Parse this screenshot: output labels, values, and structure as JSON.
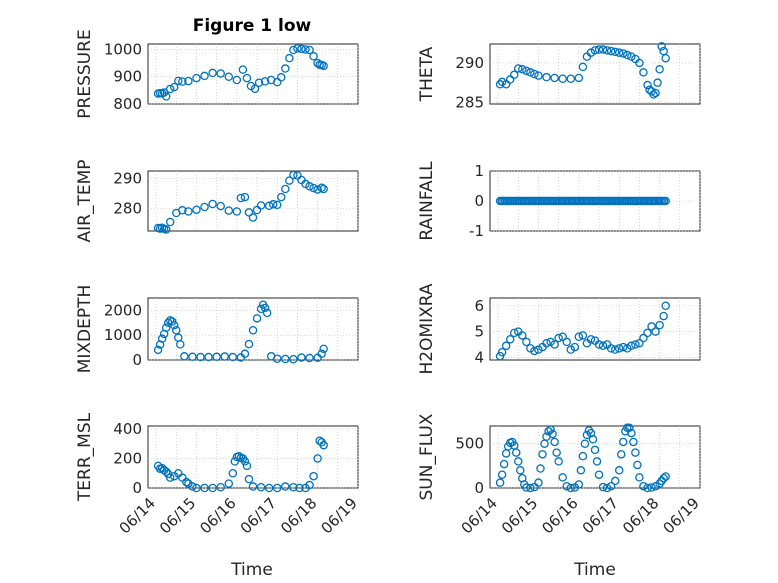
{
  "figure": {
    "title": "Figure 1 low",
    "xlabel": "Time"
  },
  "colors": {
    "series": "#0072BD",
    "axis": "#262626",
    "grid": "#bdbdbd"
  },
  "chart_data": [
    {
      "type": "scatter",
      "id": "pressure",
      "ylabel": "PRESSURE",
      "xticks": [],
      "yticks": [
        "800",
        "900",
        "1000"
      ],
      "ylim": [
        800,
        1020
      ],
      "grid": true,
      "x": [
        0.05,
        0.1,
        0.15,
        0.2,
        0.25,
        0.35,
        0.45,
        0.55,
        0.65,
        0.8,
        1.0,
        1.2,
        1.4,
        1.6,
        1.8,
        2.0,
        2.15,
        2.25,
        2.35,
        2.45,
        2.55,
        2.7,
        2.85,
        3.0,
        3.1,
        3.2,
        3.3,
        3.4,
        3.5,
        3.6,
        3.7,
        3.8,
        3.9,
        4.0,
        4.05,
        4.1,
        4.15
      ],
      "y": [
        838,
        840,
        839,
        842,
        828,
        855,
        862,
        885,
        882,
        884,
        895,
        903,
        914,
        912,
        900,
        888,
        926,
        895,
        866,
        856,
        878,
        883,
        888,
        880,
        898,
        930,
        968,
        998,
        1004,
        1002,
        1000,
        998,
        975,
        950,
        944,
        943,
        940
      ]
    },
    {
      "type": "scatter",
      "id": "theta",
      "ylabel": "THETA",
      "xticks": [],
      "yticks": [
        "285",
        "290"
      ],
      "ylim": [
        284.8,
        292.4
      ],
      "grid": true,
      "x": [
        0.05,
        0.1,
        0.2,
        0.3,
        0.4,
        0.5,
        0.6,
        0.7,
        0.8,
        0.9,
        1.0,
        1.2,
        1.4,
        1.6,
        1.8,
        2.0,
        2.1,
        2.2,
        2.3,
        2.4,
        2.5,
        2.6,
        2.7,
        2.8,
        2.9,
        3.0,
        3.1,
        3.2,
        3.3,
        3.4,
        3.5,
        3.6,
        3.7,
        3.75,
        3.8,
        3.85,
        3.9,
        3.95,
        4.0,
        4.05,
        4.1,
        4.15
      ],
      "y": [
        287.3,
        287.6,
        287.3,
        287.9,
        288.5,
        289.3,
        289.2,
        289.0,
        288.8,
        288.6,
        288.4,
        288.2,
        288.1,
        288.0,
        288.0,
        288.1,
        289.5,
        290.8,
        291.3,
        291.6,
        291.7,
        291.7,
        291.6,
        291.5,
        291.4,
        291.3,
        291.2,
        291.0,
        290.8,
        290.5,
        290.0,
        288.8,
        287.2,
        286.6,
        286.4,
        286.0,
        286.2,
        287.5,
        289.2,
        292.1,
        291.5,
        290.6
      ]
    },
    {
      "type": "scatter",
      "id": "airtemp",
      "ylabel": "AIR_TEMP",
      "xticks": [],
      "yticks": [
        "280",
        "290"
      ],
      "ylim": [
        272.5,
        292.5
      ],
      "grid": true,
      "x": [
        0.05,
        0.1,
        0.15,
        0.2,
        0.25,
        0.35,
        0.5,
        0.65,
        0.8,
        1.0,
        1.2,
        1.4,
        1.6,
        1.8,
        2.0,
        2.1,
        2.2,
        2.3,
        2.4,
        2.5,
        2.6,
        2.8,
        2.9,
        3.0,
        3.1,
        3.2,
        3.3,
        3.4,
        3.5,
        3.6,
        3.7,
        3.8,
        3.9,
        4.0,
        4.1,
        4.15
      ],
      "y": [
        273.5,
        273.3,
        273.6,
        273.2,
        273.0,
        275.5,
        278.5,
        279.4,
        279.0,
        279.6,
        280.5,
        281.5,
        280.8,
        279.3,
        279.0,
        283.5,
        283.8,
        278.7,
        277.0,
        279.5,
        281.0,
        280.9,
        281.4,
        281.2,
        283.8,
        286.5,
        289.3,
        291.2,
        291.0,
        289.5,
        288.2,
        287.4,
        286.8,
        286.3,
        286.9,
        286.5
      ]
    },
    {
      "type": "scatter",
      "id": "rainfall",
      "ylabel": "RAINFALL",
      "xticks": [],
      "yticks": [
        "-1",
        "0",
        "1"
      ],
      "ylim": [
        -1,
        1
      ],
      "grid": true,
      "x_start": 0.05,
      "x_end": 4.15,
      "constant_y": 0,
      "count": 100
    },
    {
      "type": "scatter",
      "id": "mixdepth",
      "ylabel": "MIXDEPTH",
      "xticks": [],
      "yticks": [
        "0",
        "1000",
        "2000"
      ],
      "ylim": [
        0,
        2500
      ],
      "grid": true,
      "x": [
        0.05,
        0.1,
        0.15,
        0.2,
        0.25,
        0.3,
        0.35,
        0.4,
        0.45,
        0.5,
        0.55,
        0.6,
        0.7,
        0.9,
        1.1,
        1.3,
        1.5,
        1.7,
        1.9,
        2.1,
        2.2,
        2.3,
        2.4,
        2.5,
        2.6,
        2.65,
        2.7,
        2.75,
        2.85,
        3.0,
        3.2,
        3.4,
        3.6,
        3.8,
        4.0,
        4.1,
        4.15
      ],
      "y": [
        410,
        620,
        860,
        1050,
        1300,
        1500,
        1600,
        1550,
        1400,
        1200,
        900,
        630,
        150,
        130,
        120,
        120,
        130,
        140,
        120,
        100,
        250,
        640,
        1200,
        1680,
        2060,
        2230,
        2100,
        1900,
        150,
        50,
        40,
        30,
        100,
        80,
        90,
        250,
        450
      ]
    },
    {
      "type": "scatter",
      "id": "h2omixra",
      "ylabel": "H2OMIXRA",
      "xticks": [],
      "yticks": [
        "4",
        "5",
        "6"
      ],
      "ylim": [
        3.9,
        6.3
      ],
      "grid": true,
      "x": [
        0.05,
        0.1,
        0.2,
        0.3,
        0.4,
        0.5,
        0.6,
        0.7,
        0.8,
        0.9,
        1.0,
        1.1,
        1.2,
        1.3,
        1.4,
        1.5,
        1.6,
        1.7,
        1.8,
        1.9,
        2.0,
        2.1,
        2.2,
        2.3,
        2.4,
        2.5,
        2.6,
        2.7,
        2.8,
        2.9,
        3.0,
        3.1,
        3.2,
        3.3,
        3.4,
        3.5,
        3.6,
        3.7,
        3.8,
        3.9,
        4.0,
        4.1,
        4.15
      ],
      "y": [
        4.05,
        4.2,
        4.45,
        4.7,
        4.95,
        5.0,
        4.85,
        4.6,
        4.35,
        4.25,
        4.3,
        4.4,
        4.55,
        4.6,
        4.5,
        4.75,
        4.8,
        4.6,
        4.3,
        4.4,
        4.8,
        4.85,
        4.55,
        4.7,
        4.65,
        4.5,
        4.45,
        4.5,
        4.35,
        4.3,
        4.35,
        4.4,
        4.35,
        4.45,
        4.5,
        4.55,
        4.75,
        4.95,
        5.2,
        5.0,
        5.25,
        5.6,
        6.0
      ]
    },
    {
      "type": "scatter",
      "id": "terrmsl",
      "ylabel": "TERR_MSL",
      "xticks": [
        "06/14",
        "06/15",
        "06/16",
        "06/17",
        "06/18",
        "06/19"
      ],
      "x_tick_values": [
        0,
        1,
        2,
        3,
        4,
        5
      ],
      "yticks": [
        "0",
        "200",
        "400"
      ],
      "ylim": [
        0,
        420
      ],
      "grid": true,
      "x": [
        0.05,
        0.1,
        0.15,
        0.2,
        0.25,
        0.3,
        0.35,
        0.45,
        0.55,
        0.65,
        0.75,
        0.8,
        0.9,
        1.0,
        1.2,
        1.4,
        1.6,
        1.8,
        1.9,
        1.95,
        2.0,
        2.05,
        2.1,
        2.15,
        2.2,
        2.25,
        2.3,
        2.4,
        2.6,
        2.8,
        3.0,
        3.2,
        3.4,
        3.55,
        3.7,
        3.8,
        3.9,
        4.0,
        4.05,
        4.1,
        4.15
      ],
      "y": [
        150,
        130,
        135,
        120,
        110,
        95,
        70,
        80,
        100,
        70,
        40,
        30,
        10,
        0,
        0,
        0,
        5,
        30,
        100,
        180,
        210,
        215,
        205,
        200,
        180,
        150,
        60,
        10,
        5,
        0,
        0,
        10,
        5,
        0,
        0,
        20,
        80,
        200,
        320,
        310,
        290
      ]
    },
    {
      "type": "scatter",
      "id": "sunflux",
      "ylabel": "SUN_FLUX",
      "xticks": [
        "06/14",
        "06/15",
        "06/16",
        "06/17",
        "06/18",
        "06/19"
      ],
      "x_tick_values": [
        0,
        1,
        2,
        3,
        4,
        5
      ],
      "yticks": [
        "0",
        "500"
      ],
      "ylim": [
        0,
        700
      ],
      "grid": true,
      "x": [
        0.05,
        0.1,
        0.15,
        0.2,
        0.25,
        0.3,
        0.35,
        0.4,
        0.45,
        0.5,
        0.55,
        0.6,
        0.65,
        0.7,
        0.8,
        0.9,
        1.0,
        1.05,
        1.1,
        1.15,
        1.2,
        1.25,
        1.3,
        1.35,
        1.4,
        1.45,
        1.5,
        1.6,
        1.7,
        1.8,
        1.9,
        2.0,
        2.05,
        2.1,
        2.15,
        2.2,
        2.25,
        2.3,
        2.35,
        2.4,
        2.45,
        2.5,
        2.6,
        2.7,
        2.8,
        2.9,
        3.0,
        3.05,
        3.1,
        3.15,
        3.2,
        3.25,
        3.3,
        3.35,
        3.4,
        3.45,
        3.5,
        3.6,
        3.7,
        3.8,
        3.9,
        4.0,
        4.05,
        4.1,
        4.15
      ],
      "y": [
        60,
        150,
        270,
        390,
        470,
        510,
        520,
        480,
        400,
        300,
        200,
        110,
        40,
        5,
        0,
        10,
        60,
        220,
        380,
        500,
        580,
        640,
        660,
        610,
        520,
        400,
        300,
        120,
        20,
        0,
        5,
        40,
        200,
        360,
        500,
        600,
        650,
        620,
        550,
        430,
        300,
        150,
        10,
        0,
        20,
        80,
        200,
        380,
        520,
        640,
        680,
        680,
        620,
        520,
        400,
        260,
        120,
        20,
        0,
        5,
        20,
        50,
        80,
        110,
        130
      ]
    }
  ]
}
